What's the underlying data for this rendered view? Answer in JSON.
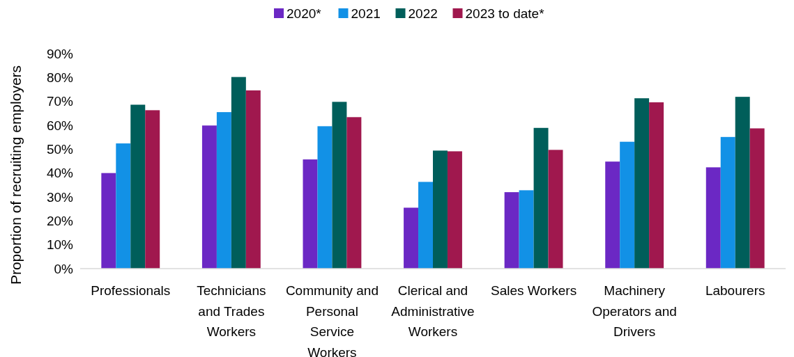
{
  "chart_data": {
    "type": "bar",
    "ylabel": "Proportion of recruiting employers",
    "categories": [
      "Professionals",
      "Technicians and Trades Workers",
      "Community and Personal Service Workers",
      "Clerical and Administrative Workers",
      "Sales Workers",
      "Machinery Operators and Drivers",
      "Labourers"
    ],
    "series": [
      {
        "name": "2020*",
        "color": "#6b28c4",
        "values": [
          40.0,
          59.9,
          45.7,
          25.5,
          32.0,
          44.8,
          42.4
        ]
      },
      {
        "name": "2021",
        "color": "#1291e6",
        "values": [
          52.4,
          65.5,
          59.6,
          36.3,
          32.8,
          53.1,
          55.1
        ]
      },
      {
        "name": "2022",
        "color": "#005e5a",
        "values": [
          68.6,
          80.2,
          69.8,
          49.4,
          58.9,
          71.3,
          71.9
        ]
      },
      {
        "name": "2023 to date*",
        "color": "#a0184e",
        "values": [
          66.3,
          74.6,
          63.4,
          49.1,
          49.7,
          69.6,
          58.7
        ]
      }
    ],
    "ylim": [
      0,
      90
    ],
    "yticks": [
      {
        "value": 0,
        "label": "0%"
      },
      {
        "value": 10,
        "label": "10%"
      },
      {
        "value": 20,
        "label": "20%"
      },
      {
        "value": 30,
        "label": "30%"
      },
      {
        "value": 40,
        "label": "40%"
      },
      {
        "value": 50,
        "label": "50%"
      },
      {
        "value": 60,
        "label": "60%"
      },
      {
        "value": 70,
        "label": "70%"
      },
      {
        "value": 80,
        "label": "80%"
      },
      {
        "value": 90,
        "label": "90%"
      }
    ],
    "grid": false,
    "legend": "top"
  }
}
